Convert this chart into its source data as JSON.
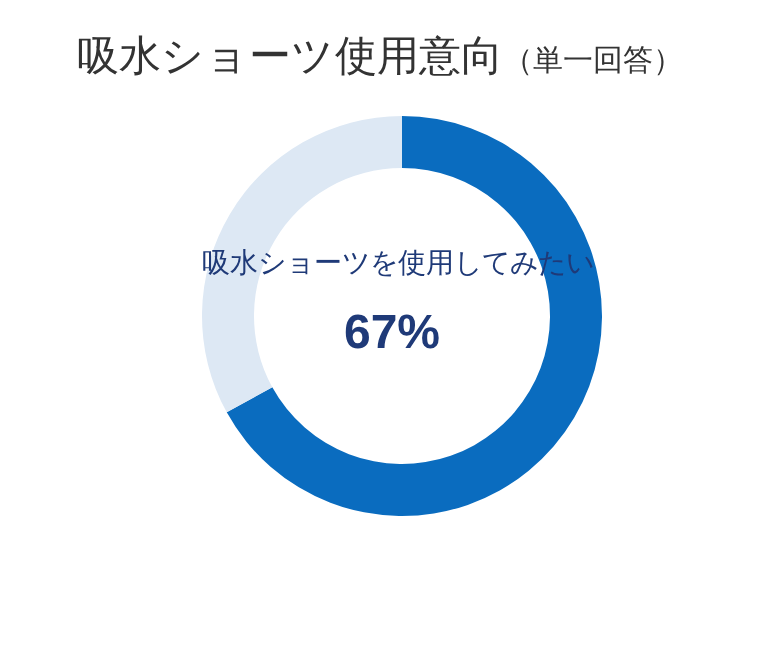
{
  "chart_data": {
    "type": "donut",
    "title": "吸水ショーツ使用意向",
    "subtitle": "（単一回答）",
    "categories": [
      "吸水ショーツを使用してみたい",
      null
    ],
    "values": [
      67,
      33
    ],
    "colors": [
      "#0a6cbf",
      "#dde8f4"
    ],
    "value_labels": [
      "67%",
      null
    ]
  }
}
